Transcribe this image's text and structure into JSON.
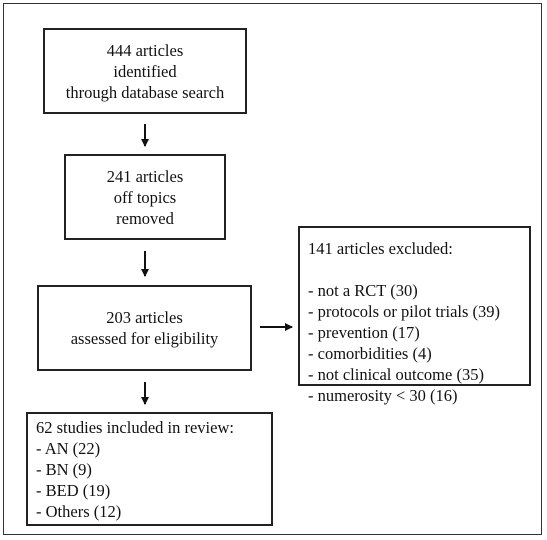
{
  "boxes": {
    "identified": [
      "444 articles",
      "identified",
      "through database search"
    ],
    "off_topic": [
      "241 articles",
      "off topics",
      "removed"
    ],
    "eligibility": [
      "203 articles",
      "assessed for eligibility"
    ],
    "excluded": {
      "title": "141 articles excluded:",
      "items": [
        "- not a RCT (30)",
        "- protocols or pilot trials (39)",
        "- prevention (17)",
        "- comorbidities (4)",
        "- not clinical outcome (35)",
        "- numerosity < 30 (16)"
      ]
    },
    "included": {
      "title": "62 studies included in review:",
      "items": [
        "- AN (22)",
        "- BN (9)",
        "- BED (19)",
        "- Others (12)"
      ]
    }
  }
}
